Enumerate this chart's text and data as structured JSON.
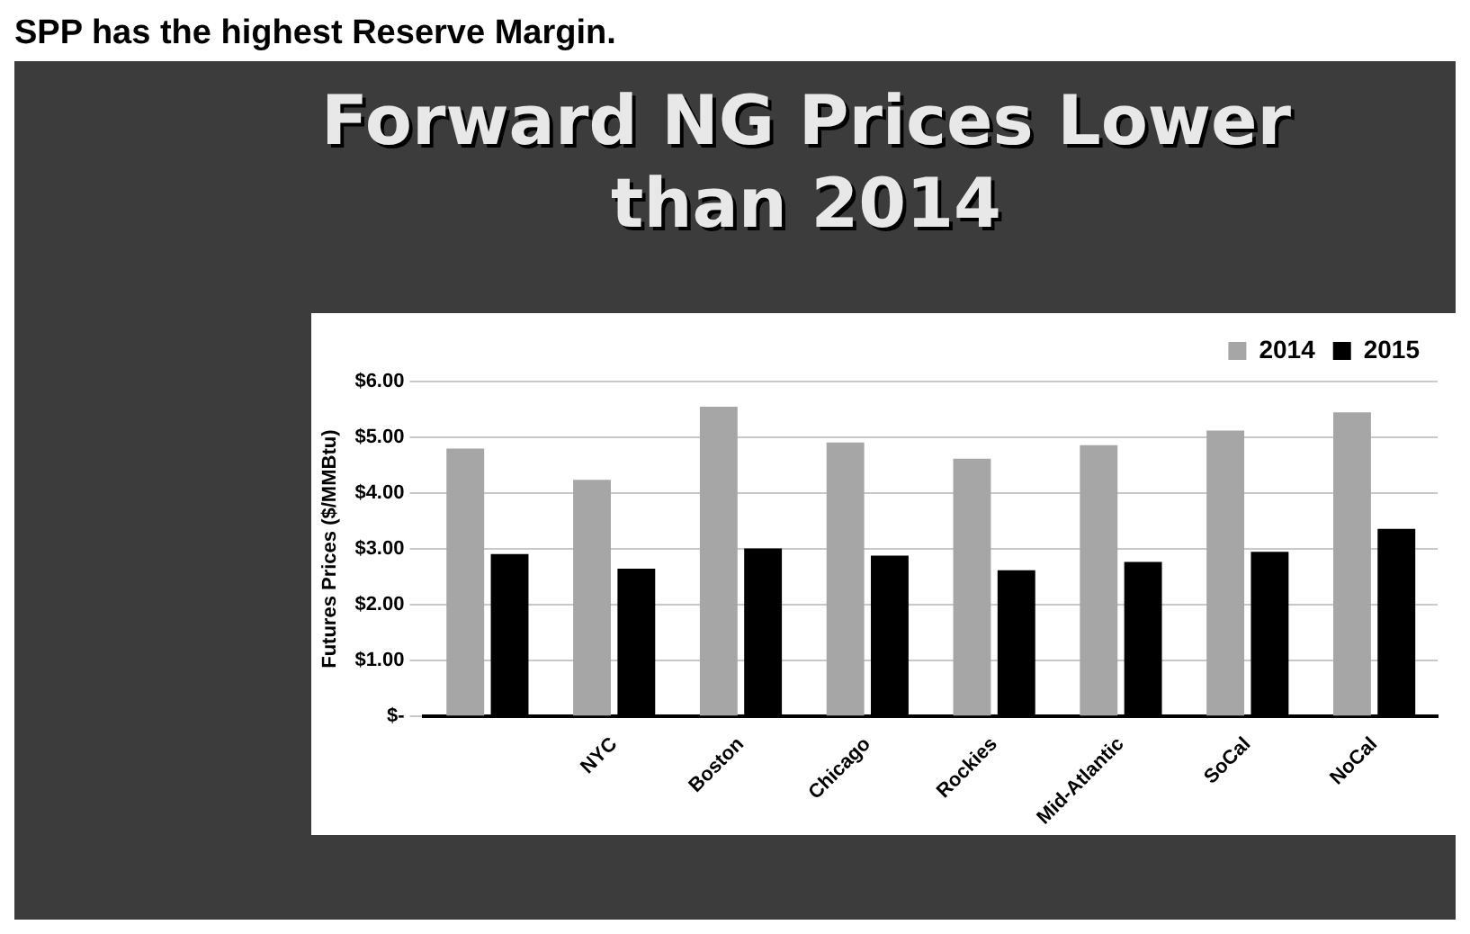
{
  "chart_data": {
    "type": "bar",
    "title": "Forward NG Prices Lower than 2014",
    "ylabel": "Futures Prices ($/MMBtu)",
    "annotations": [
      "SPP has the highest Reserve Margin."
    ],
    "categories": [
      null,
      "NYC",
      "Boston",
      "Chicago",
      "Rockies",
      "Mid-Atlantic",
      "SoCal",
      "NoCal"
    ],
    "series": [
      {
        "name": "2014",
        "color": "#a6a6a6",
        "values": [
          4.8,
          4.24,
          5.55,
          4.91,
          4.62,
          4.86,
          5.12,
          5.45
        ]
      },
      {
        "name": "2015",
        "color": "#000000",
        "values": [
          2.91,
          2.65,
          3.01,
          2.88,
          2.62,
          2.77,
          2.95,
          3.36
        ]
      }
    ],
    "ylim": [
      0,
      6
    ],
    "yticks": [
      {
        "value": 0,
        "label": "$-"
      },
      {
        "value": 1,
        "label": "$1.00"
      },
      {
        "value": 2,
        "label": "$2.00"
      },
      {
        "value": 3,
        "label": "$3.00"
      },
      {
        "value": 4,
        "label": "$4.00"
      },
      {
        "value": 5,
        "label": "$5.00"
      },
      {
        "value": 6,
        "label": "$6.00"
      }
    ],
    "grid": "y",
    "legend": "top right"
  }
}
